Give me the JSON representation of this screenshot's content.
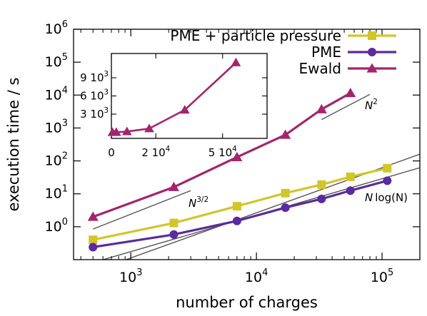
{
  "chart_data": {
    "type": "line",
    "xlabel": "number of charges",
    "ylabel": "execution time / s",
    "x_scale": "log",
    "y_scale": "log",
    "xlim": [
      350,
      200000
    ],
    "ylim": [
      0.1,
      1000000
    ],
    "x_ticks": [
      {
        "value": 1000,
        "base": "10",
        "exp": "3"
      },
      {
        "value": 10000,
        "base": "10",
        "exp": "4"
      },
      {
        "value": 100000,
        "base": "10",
        "exp": "5"
      }
    ],
    "y_ticks": [
      {
        "value": 1,
        "base": "10",
        "exp": "0"
      },
      {
        "value": 10,
        "base": "10",
        "exp": "1"
      },
      {
        "value": 100,
        "base": "10",
        "exp": "2"
      },
      {
        "value": 1000,
        "base": "10",
        "exp": "3"
      },
      {
        "value": 10000,
        "base": "10",
        "exp": "4"
      },
      {
        "value": 100000,
        "base": "10",
        "exp": "5"
      },
      {
        "value": 1000000,
        "base": "10",
        "exp": "6"
      }
    ],
    "legend_position": "top-right",
    "series": [
      {
        "name": "PME + particle pressure",
        "color": "#d1c62a",
        "marker": "square",
        "x": [
          500,
          2200,
          7000,
          17000,
          33000,
          56000,
          110000
        ],
        "y": [
          0.4,
          1.3,
          4.2,
          10.5,
          19,
          33,
          60
        ]
      },
      {
        "name": "PME",
        "color": "#5b2a9e",
        "marker": "circle",
        "x": [
          500,
          2200,
          7000,
          17000,
          33000,
          56000,
          110000
        ],
        "y": [
          0.24,
          0.58,
          1.5,
          3.8,
          7,
          12.5,
          25
        ]
      },
      {
        "name": "Ewald",
        "color": "#a4246e",
        "marker": "triangle",
        "x": [
          500,
          2200,
          7000,
          17000,
          33000,
          56000
        ],
        "y": [
          2,
          16,
          130,
          620,
          3700,
          11500
        ]
      }
    ],
    "reference_lines": [
      {
        "label_base": "N",
        "label_exp": "2",
        "x": [
          33000,
          80000
        ],
        "y": [
          1800,
          10500
        ]
      },
      {
        "label_base": "N",
        "label_exp": "3/2",
        "x": [
          500,
          3000
        ],
        "y": [
          0.85,
          12.5
        ]
      },
      {
        "label_base": "N",
        "label_log": "log(N)",
        "x": [
          380,
          200000
        ],
        "y": [
          0.06,
          62
        ]
      },
      {
        "label_base": "",
        "x": [
          380,
          200000
        ],
        "y": [
          0.03,
          160
        ]
      }
    ],
    "inset": {
      "xlim": [
        0,
        70000
      ],
      "ylim": [
        -1000,
        13000
      ],
      "x_ticks": [
        {
          "value": 0,
          "base": "0",
          "exp": ""
        },
        {
          "value": 20000,
          "base": "2 10",
          "exp": "4"
        },
        {
          "value": 50000,
          "base": "5 10",
          "exp": "4"
        }
      ],
      "y_ticks": [
        {
          "value": 3000,
          "base": "3 10",
          "exp": "3"
        },
        {
          "value": 6000,
          "base": "6 10",
          "exp": "3"
        },
        {
          "value": 9000,
          "base": "9 10",
          "exp": "3"
        }
      ],
      "series_name": "Ewald",
      "x": [
        500,
        2200,
        7000,
        17000,
        33000,
        56000
      ],
      "y": [
        2,
        16,
        130,
        620,
        3700,
        11500
      ]
    }
  }
}
